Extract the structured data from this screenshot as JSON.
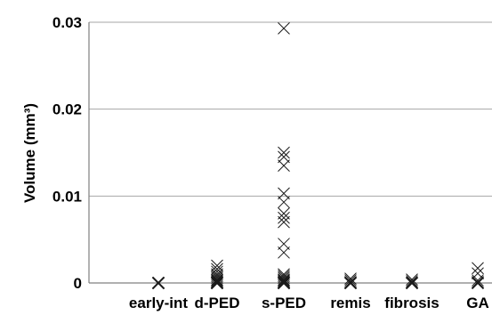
{
  "chart_data": {
    "type": "scatter",
    "title": "",
    "xlabel": "",
    "ylabel": "Volume (mm³)",
    "ylim": [
      0,
      0.03
    ],
    "y_ticks": [
      "0",
      "0.01",
      "0.02",
      "0.03"
    ],
    "grid": "horizontal",
    "marker": "x",
    "categories": [
      "early-int",
      "d-PED",
      "s-PED",
      "remis",
      "fibrosis",
      "GA"
    ],
    "points": [
      {
        "category": "early-int",
        "values": [
          0,
          0,
          0
        ]
      },
      {
        "category": "d-PED",
        "values": [
          0.002,
          0.0016,
          0.0013,
          0.001,
          0.0008,
          0.0006,
          0.0004,
          0.0003,
          0.0002,
          0.0001,
          0,
          0,
          0
        ]
      },
      {
        "category": "s-PED",
        "values": [
          0.0293,
          0.015,
          0.0145,
          0.0135,
          0.0103,
          0.0093,
          0.008,
          0.0075,
          0.007,
          0.0045,
          0.0035,
          0.001,
          0.0008,
          0.0006,
          0.0004,
          0.0003,
          0.0002,
          0.0001,
          0,
          0,
          0
        ]
      },
      {
        "category": "remis",
        "values": [
          0.0005,
          0.0003,
          0.0001,
          0,
          0
        ]
      },
      {
        "category": "fibrosis",
        "values": [
          0.0004,
          0.0002,
          0,
          0
        ]
      },
      {
        "category": "GA",
        "values": [
          0.0017,
          0.0011,
          0.0003,
          0.0001,
          0
        ]
      }
    ]
  }
}
